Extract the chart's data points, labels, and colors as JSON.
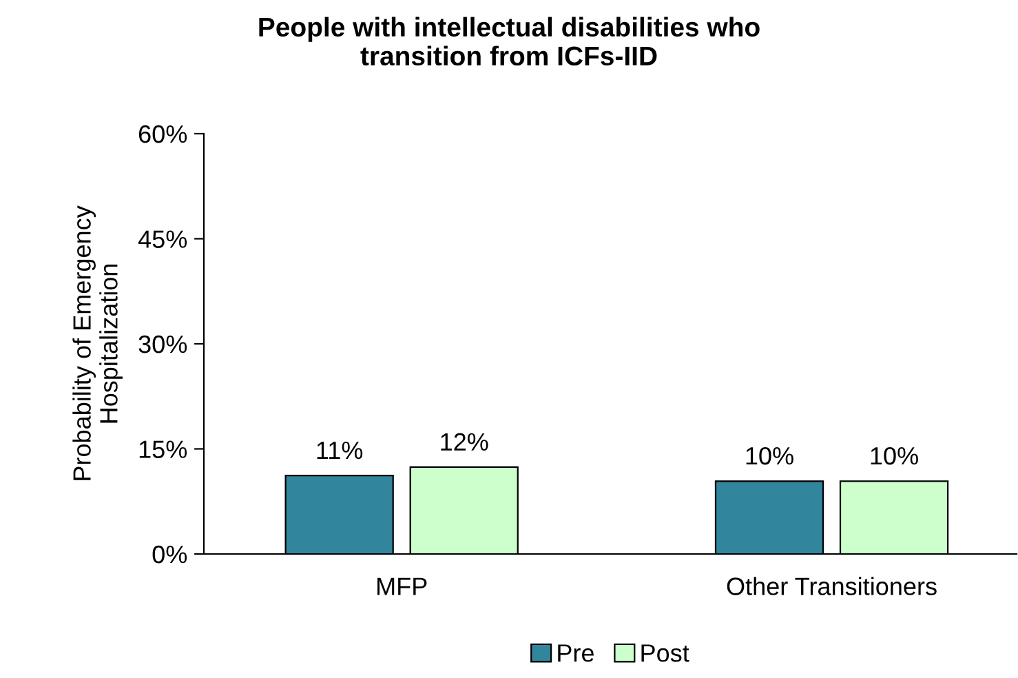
{
  "chart_data": {
    "type": "bar",
    "title": "People with intellectual disabilities who\ntransition from ICFs-IID",
    "ylabel": "Probability of Emergency\nHospitalization",
    "categories": [
      "MFP",
      "Other Transitioners"
    ],
    "series": [
      {
        "name": "Pre",
        "color": "#31859c",
        "values": [
          11.2,
          10.4
        ],
        "value_labels": [
          "11%",
          "10%"
        ]
      },
      {
        "name": "Post",
        "color": "#ccffcc",
        "values": [
          12.4,
          10.4
        ],
        "value_labels": [
          "12%",
          "10%"
        ]
      }
    ],
    "ylim": [
      0,
      60
    ],
    "yticks": [
      {
        "value": 0,
        "label": "0%"
      },
      {
        "value": 15,
        "label": "15%"
      },
      {
        "value": 30,
        "label": "30%"
      },
      {
        "value": 45,
        "label": "45%"
      },
      {
        "value": 60,
        "label": "60%"
      }
    ],
    "grid": false,
    "legend": "bottom"
  }
}
